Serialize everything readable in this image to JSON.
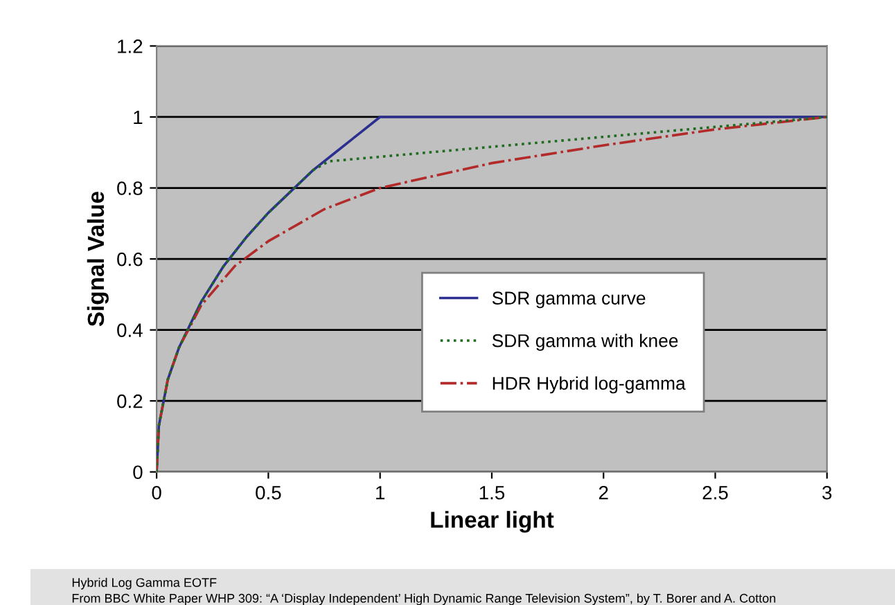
{
  "chart_data": {
    "type": "line",
    "xlabel": "Linear light",
    "ylabel": "Signal Value",
    "xlim": [
      0,
      3
    ],
    "ylim": [
      0,
      1.2
    ],
    "xticks": [
      0,
      0.5,
      1,
      1.5,
      2,
      2.5,
      3
    ],
    "yticks": [
      0,
      0.2,
      0.4,
      0.6,
      0.8,
      1,
      1.2
    ],
    "grid": "y",
    "legend": "lower right",
    "marker": "none",
    "series": [
      {
        "name": "SDR gamma curve",
        "color": "#2b2f8f",
        "line_style": "solid",
        "x": [
          0,
          0.01,
          0.05,
          0.1,
          0.2,
          0.3,
          0.4,
          0.5,
          0.6,
          0.7,
          0.8,
          0.9,
          1,
          3
        ],
        "values": [
          0,
          0.13,
          0.26,
          0.35,
          0.48,
          0.58,
          0.66,
          0.73,
          0.79,
          0.85,
          0.9,
          0.95,
          1,
          1
        ]
      },
      {
        "name": "SDR gamma with knee",
        "color": "#1f6b1f",
        "line_style": "dotted",
        "x": [
          0,
          0.01,
          0.05,
          0.1,
          0.2,
          0.3,
          0.4,
          0.5,
          0.6,
          0.7,
          0.77,
          3
        ],
        "values": [
          0,
          0.13,
          0.26,
          0.35,
          0.48,
          0.58,
          0.66,
          0.73,
          0.79,
          0.85,
          0.875,
          1
        ]
      },
      {
        "name": "HDR Hybrid log-gamma",
        "color": "#b22a2a",
        "line_style": "dashdot",
        "x": [
          0,
          0.01,
          0.05,
          0.1,
          0.2,
          0.35,
          0.5,
          0.75,
          1,
          1.5,
          2,
          2.5,
          3
        ],
        "values": [
          0,
          0.13,
          0.26,
          0.35,
          0.47,
          0.58,
          0.65,
          0.74,
          0.8,
          0.87,
          0.92,
          0.965,
          1
        ]
      }
    ],
    "annotations": [
      "Hybrid Log Gamma EOTF",
      "From BBC White Paper WHP 309: “A ‘Display Independent’ High Dynamic Range Television System”, by T. Borer and A. Cotton"
    ]
  }
}
